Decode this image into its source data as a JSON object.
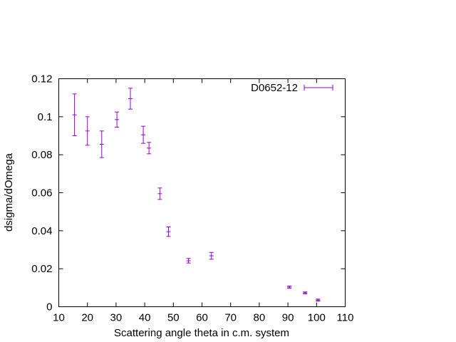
{
  "chart_data": {
    "type": "scatter",
    "title": "",
    "xlabel": "Scattering angle theta in c.m. system",
    "ylabel": "dsigma/dOmega",
    "xlim": [
      10,
      110
    ],
    "ylim": [
      0,
      0.12
    ],
    "x_ticks": [
      "10",
      "20",
      "30",
      "40",
      "50",
      "60",
      "70",
      "80",
      "90",
      "100",
      "110"
    ],
    "y_ticks": [
      "0",
      "0.02",
      "0.04",
      "0.06",
      "0.08",
      "0.1",
      "0.12"
    ],
    "grid": false,
    "legend_position": "top-right",
    "series": [
      {
        "name": "D0652-12",
        "color": "#9400d3",
        "marker": "error-bars",
        "points": [
          {
            "x": 15.5,
            "y": 0.101,
            "yerr": 0.011
          },
          {
            "x": 20.0,
            "y": 0.0925,
            "yerr": 0.0075
          },
          {
            "x": 25.0,
            "y": 0.0855,
            "yerr": 0.007
          },
          {
            "x": 30.3,
            "y": 0.0985,
            "yerr": 0.004
          },
          {
            "x": 35.0,
            "y": 0.1095,
            "yerr": 0.0055
          },
          {
            "x": 39.5,
            "y": 0.0905,
            "yerr": 0.0045
          },
          {
            "x": 41.5,
            "y": 0.0835,
            "yerr": 0.003
          },
          {
            "x": 45.3,
            "y": 0.0595,
            "yerr": 0.003
          },
          {
            "x": 48.3,
            "y": 0.0395,
            "yerr": 0.0025
          },
          {
            "x": 55.3,
            "y": 0.0242,
            "yerr": 0.0012
          },
          {
            "x": 63.3,
            "y": 0.0268,
            "yerr": 0.0018
          },
          {
            "x": 90.5,
            "y": 0.0103,
            "yerr": 0.0006
          },
          {
            "x": 96.0,
            "y": 0.0073,
            "yerr": 0.0005
          },
          {
            "x": 100.5,
            "y": 0.0035,
            "yerr": 0.0005
          }
        ]
      }
    ]
  }
}
